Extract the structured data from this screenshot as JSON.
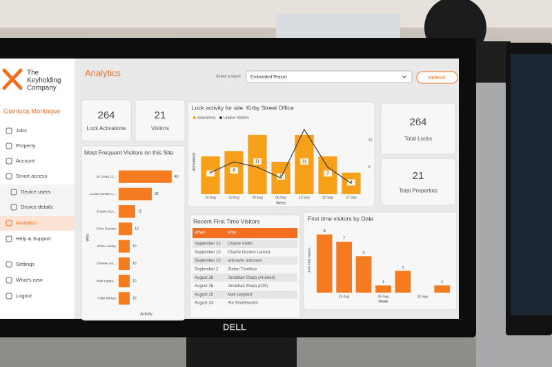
{
  "brand": {
    "lines": [
      "The",
      "Keyholding",
      "Company"
    ]
  },
  "sidebar": {
    "user": "Gianluca Montaque",
    "items": [
      "Jobs",
      "Property",
      "Account",
      "Smart access",
      "Device users",
      "Device details",
      "Analytics",
      "Help & Support",
      "Settings",
      "What's new",
      "Logout"
    ],
    "active_item": 6
  },
  "header": {
    "title": "Analytics",
    "select_label": "Select a report",
    "select_value": "Embedded Report",
    "button": "Refresh"
  },
  "kpis": [
    {
      "value": 264,
      "label": "Lock Activations"
    },
    {
      "value": 21,
      "label": "Visitors"
    },
    {
      "value": 264,
      "label": "Total Locks"
    },
    {
      "value": 21,
      "label": "Total Properties"
    }
  ],
  "chart_data": [
    {
      "type": "combo",
      "title": "Lock activity for site: Kirby Street Office",
      "x_label": "Week",
      "y_label": "Activations",
      "categories": [
        "16 Aug",
        "23 Aug",
        "30 Aug",
        "06 Sep",
        "13 Sep",
        "20 Sep",
        "27 Sep"
      ],
      "series": [
        {
          "name": "Activations",
          "color": "#f7a11a",
          "values": [
            7,
            8,
            11,
            6,
            11,
            7,
            4
          ]
        },
        {
          "name": "Unique Visitors",
          "color": "#3a3a3a",
          "axis": "y2",
          "values": [
            4,
            6,
            5,
            3,
            12,
            5,
            2
          ]
        }
      ],
      "ylim": [
        0,
        12
      ],
      "y2lim": [
        0,
        12
      ],
      "y2ticks": [
        5,
        10
      ]
    },
    {
      "type": "barh",
      "title": "Most Frequent Visitors on this Site",
      "x_label": "Activity",
      "y_label": "Who",
      "categories": [
        "St Clean Cl...",
        "Lucas Gordon L...",
        "Charlie Gor...",
        "Chris Gordon",
        "Chris Lawley",
        "Cleaner Sa...",
        "Matt Leppa...",
        "Colin Kinsey"
      ],
      "values": [
        48,
        30,
        15,
        12,
        10,
        10,
        10,
        10
      ],
      "color": "#f47b20",
      "xlim": [
        0,
        50
      ]
    },
    {
      "type": "bar",
      "title": "First time visitors by Date",
      "x_label": "Week",
      "y_label": "First time visitors",
      "categories": [
        null,
        "23 Aug",
        null,
        "06 Sep",
        null,
        "20 Sep",
        null
      ],
      "values": [
        8,
        7,
        5,
        1,
        3,
        null,
        1
      ],
      "color": "#f47b20",
      "ylim": [
        0,
        9
      ]
    }
  ],
  "table": {
    "title": "Recent First Time Visitors",
    "columns": [
      "When",
      "Who"
    ],
    "rows": [
      [
        "September 22",
        "Charlie Smith"
      ],
      [
        "September 10",
        "Charlie Gordon Lennox"
      ],
      [
        "September 10",
        "unknown unknown"
      ],
      [
        "September 2",
        "Stefan Tsvetkov"
      ],
      [
        "August 26",
        "Jonathan Sharp (Android)"
      ],
      [
        "August 26",
        "Jonathan Sharp (iOS)"
      ],
      [
        "August 25",
        "Matt Leppard"
      ],
      [
        "August 24",
        "Abi Shuttleworth"
      ]
    ]
  }
}
